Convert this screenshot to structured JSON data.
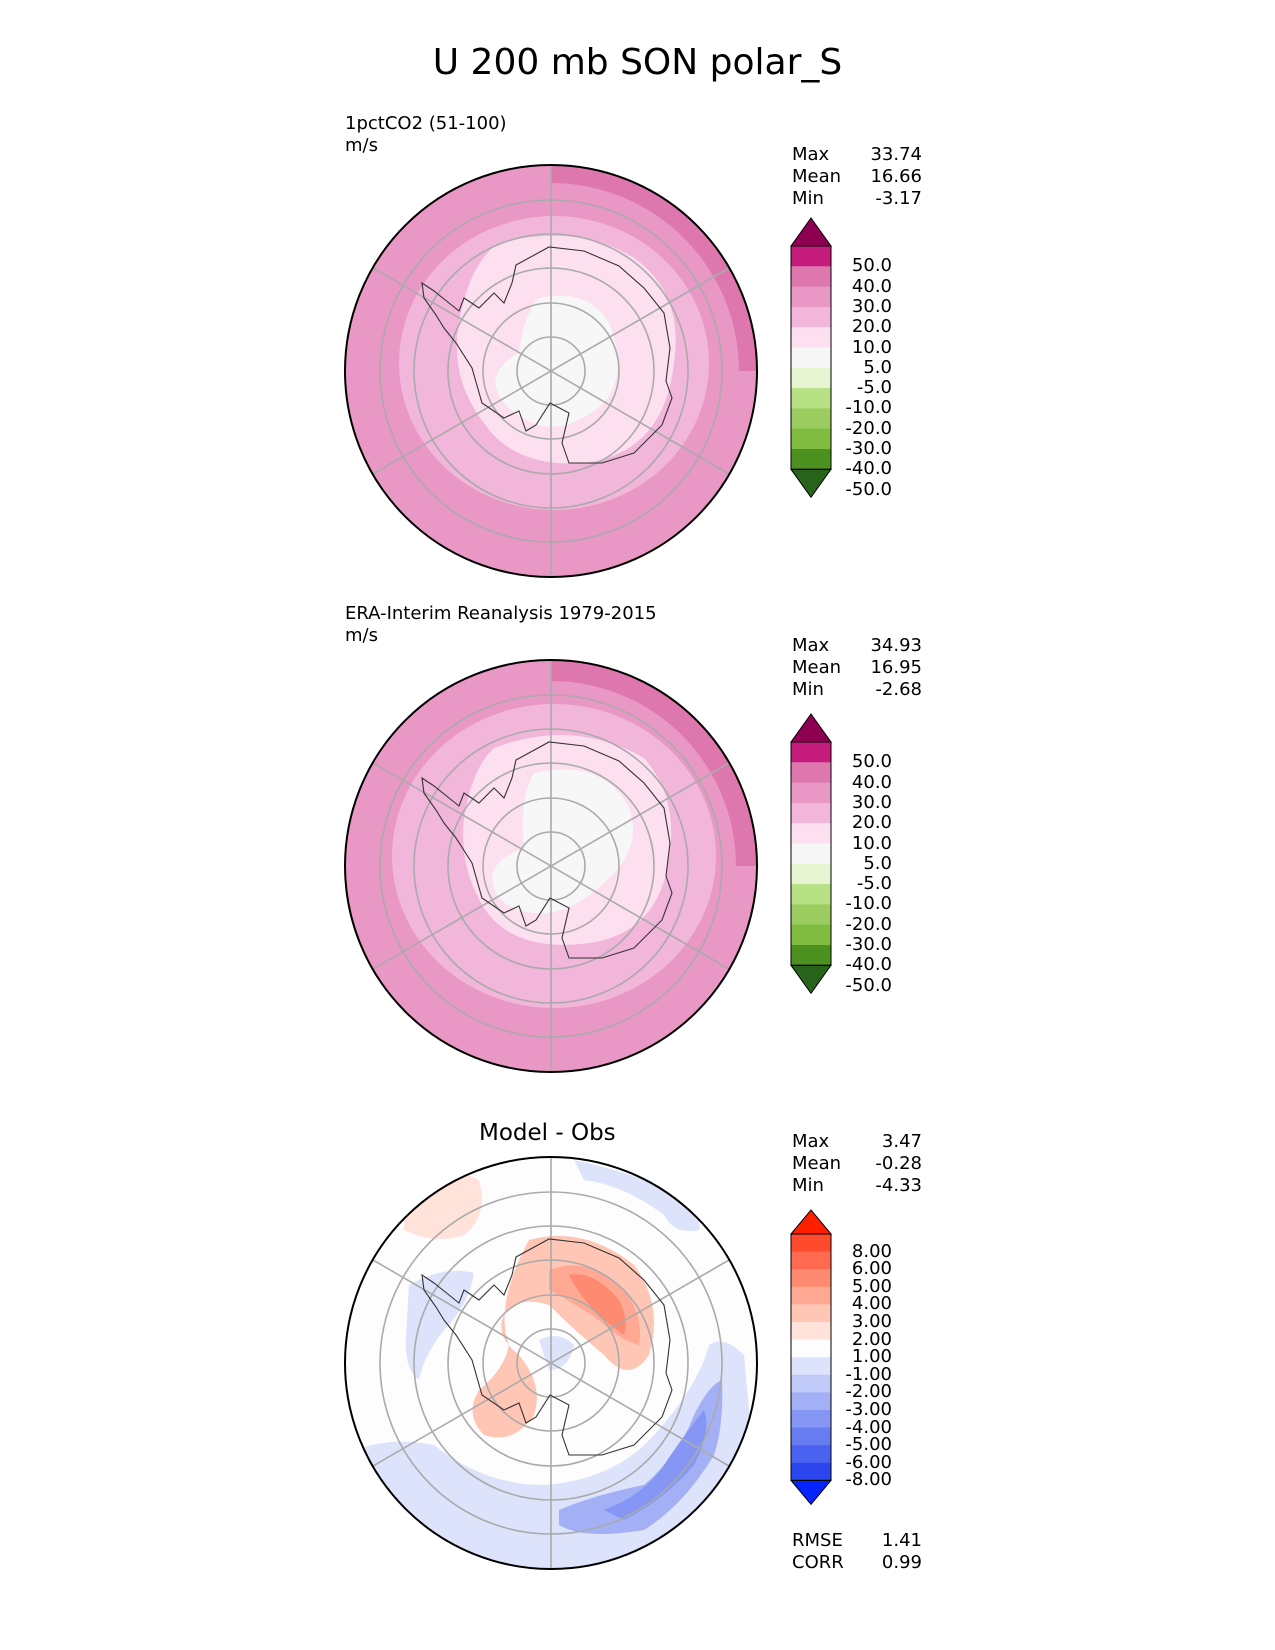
{
  "title": "U 200 mb SON polar_S",
  "panels": [
    {
      "title": "1pctCO2 (51-100)",
      "units": "m/s",
      "stats": {
        "max_label": "Max",
        "max": "33.74",
        "mean_label": "Mean",
        "mean": "16.66",
        "min_label": "Min",
        "min": "-3.17"
      },
      "colorbar": {
        "colors": [
          "#8e0152",
          "#c51b7d",
          "#de77ae",
          "#e997c4",
          "#f1b6da",
          "#fde0ef",
          "#f7f7f7",
          "#e6f5d0",
          "#b8e186",
          "#9bcc5f",
          "#7fbc41",
          "#4d9221",
          "#276419"
        ],
        "ticks": [
          "50.0",
          "40.0",
          "30.0",
          "20.0",
          "10.0",
          "5.0",
          "-5.0",
          "-10.0",
          "-20.0",
          "-30.0",
          "-40.0",
          "-50.0"
        ]
      }
    },
    {
      "title": "ERA-Interim Reanalysis 1979-2015",
      "units": "m/s",
      "stats": {
        "max_label": "Max",
        "max": "34.93",
        "mean_label": "Mean",
        "mean": "16.95",
        "min_label": "Min",
        "min": "-2.68"
      },
      "colorbar": {
        "colors": [
          "#8e0152",
          "#c51b7d",
          "#de77ae",
          "#e997c4",
          "#f1b6da",
          "#fde0ef",
          "#f7f7f7",
          "#e6f5d0",
          "#b8e186",
          "#9bcc5f",
          "#7fbc41",
          "#4d9221",
          "#276419"
        ],
        "ticks": [
          "50.0",
          "40.0",
          "30.0",
          "20.0",
          "10.0",
          "5.0",
          "-5.0",
          "-10.0",
          "-20.0",
          "-30.0",
          "-40.0",
          "-50.0"
        ]
      }
    },
    {
      "title": "Model - Obs",
      "stats": {
        "max_label": "Max",
        "max": "3.47",
        "mean_label": "Mean",
        "mean": "-0.28",
        "min_label": "Min",
        "min": "-4.33"
      },
      "colorbar": {
        "colors": [
          "#ff2000",
          "#ff4a2e",
          "#ff6a50",
          "#ff8a72",
          "#ffa994",
          "#ffc6b6",
          "#ffe2da",
          "#fdfdfd",
          "#dde3fb",
          "#c0caf9",
          "#a3b0f6",
          "#8596f4",
          "#687cf2",
          "#4a62ef",
          "#2b46ee",
          "#0524ff"
        ],
        "ticks": [
          "8.00",
          "6.00",
          "5.00",
          "4.00",
          "3.00",
          "2.00",
          "1.00",
          "-1.00",
          "-2.00",
          "-3.00",
          "-4.00",
          "-5.00",
          "-6.00",
          "-8.00"
        ]
      },
      "metrics": {
        "rmse_label": "RMSE",
        "rmse": "1.41",
        "corr_label": "CORR",
        "corr": "0.99"
      }
    }
  ]
}
